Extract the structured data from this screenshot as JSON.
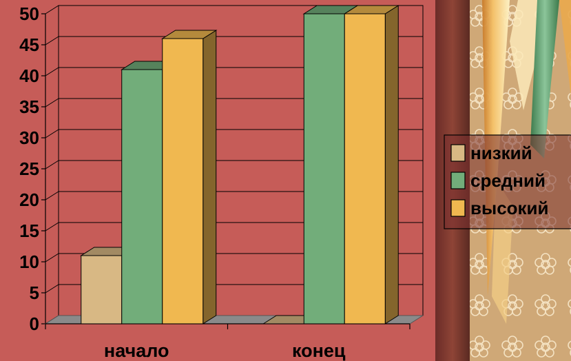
{
  "chart_data": {
    "type": "bar",
    "categories": [
      "начало",
      "конец"
    ],
    "series": [
      {
        "name": "низкий",
        "values": [
          11,
          0
        ],
        "color": "#d8b884"
      },
      {
        "name": "средний",
        "values": [
          41,
          50
        ],
        "color": "#72ad7a"
      },
      {
        "name": "высокий",
        "values": [
          46,
          50
        ],
        "color": "#f0b850"
      }
    ],
    "ylim": [
      0,
      50
    ],
    "yticks": [
      "0",
      "5",
      "10",
      "15",
      "20",
      "25",
      "30",
      "35",
      "40",
      "45",
      "50"
    ],
    "grid": true,
    "legend_position": "right",
    "three_d": true
  },
  "colors": {
    "plot_background": "#c65c58",
    "curtain_dark": "#7a3a2c",
    "curtain_pattern": "#cfa877"
  }
}
